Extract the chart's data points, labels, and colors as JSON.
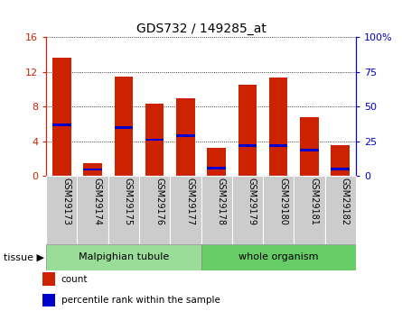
{
  "title": "GDS732 / 149285_at",
  "categories": [
    "GSM29173",
    "GSM29174",
    "GSM29175",
    "GSM29176",
    "GSM29177",
    "GSM29178",
    "GSM29179",
    "GSM29180",
    "GSM29181",
    "GSM29182"
  ],
  "count_values": [
    13.6,
    1.5,
    11.5,
    8.3,
    9.0,
    3.2,
    10.5,
    11.3,
    6.8,
    3.5
  ],
  "percentile_values": [
    37.0,
    4.5,
    35.0,
    26.0,
    29.0,
    5.5,
    22.0,
    22.0,
    18.5,
    5.0
  ],
  "left_ylim": [
    0,
    16
  ],
  "right_ylim": [
    0,
    100
  ],
  "left_yticks": [
    0,
    4,
    8,
    12,
    16
  ],
  "right_yticks": [
    0,
    25,
    50,
    75,
    100
  ],
  "left_yticklabels": [
    "0",
    "4",
    "8",
    "12",
    "16"
  ],
  "right_yticklabels": [
    "0",
    "25",
    "50",
    "75",
    "100%"
  ],
  "bar_color": "#cc2200",
  "percentile_color": "#0000cc",
  "tissue_groups": [
    {
      "label": "Malpighian tubule",
      "start": 0,
      "end": 5,
      "color": "#99dd99"
    },
    {
      "label": "whole organism",
      "start": 5,
      "end": 10,
      "color": "#66cc66"
    }
  ],
  "tissue_label": "tissue",
  "legend_items": [
    {
      "label": "count",
      "color": "#cc2200"
    },
    {
      "label": "percentile rank within the sample",
      "color": "#0000cc"
    }
  ],
  "plot_bg_color": "#ffffff",
  "tick_label_bg": "#cccccc"
}
